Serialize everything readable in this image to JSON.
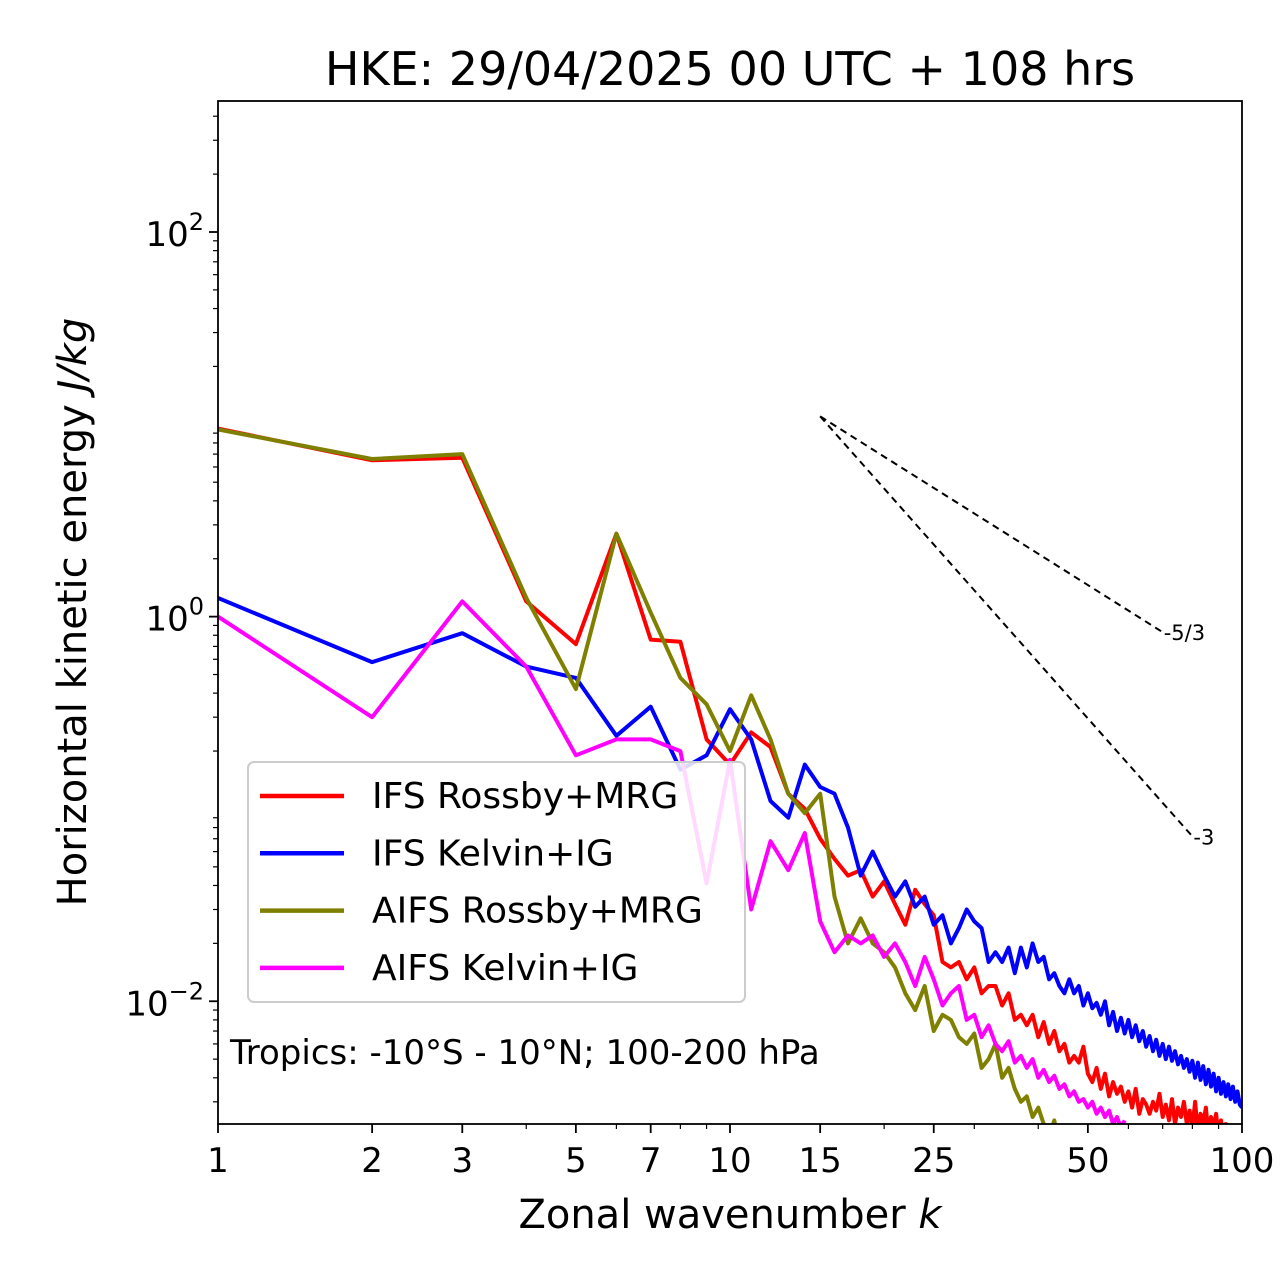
{
  "chart_data": {
    "type": "line",
    "title": "HKE: 29/04/2025 00 UTC + 108 hrs",
    "xlabel_text": "Zonal wavenumber ",
    "xlabel_italic": "k",
    "ylabel_text": "Horizontal kinetic energy ",
    "ylabel_italic": "J/kg",
    "xscale": "log",
    "yscale": "log",
    "xlim": [
      1,
      100
    ],
    "ylim": [
      0.0023,
      480
    ],
    "x_ticks": [
      1,
      2,
      3,
      5,
      7,
      10,
      15,
      25,
      50,
      100
    ],
    "x_tick_labels": [
      "1",
      "2",
      "3",
      "5",
      "7",
      "10",
      "15",
      "25",
      "50",
      "100"
    ],
    "y_ticks": [
      0.01,
      1,
      100
    ],
    "y_tick_labels": [
      {
        "base": "10",
        "exp": "−2"
      },
      {
        "base": "10",
        "exp": "0"
      },
      {
        "base": "10",
        "exp": "2"
      }
    ],
    "legend_position": "lower-left",
    "annotation": "Tropics: -10°S - 10°N; 100-200 hPa",
    "reference_slopes": [
      {
        "label": "-5/3",
        "x": [
          15,
          70
        ],
        "y": [
          11.0,
          0.83
        ]
      },
      {
        "label": "-3",
        "x": [
          15,
          80
        ],
        "y": [
          11.0,
          0.072
        ]
      }
    ],
    "series": [
      {
        "name": "IFS Rossby+MRG",
        "color": "#ff0000",
        "x": [
          1,
          2,
          3,
          4,
          5,
          6,
          7,
          8,
          9,
          10,
          11,
          12,
          13,
          14,
          15,
          16,
          17,
          18,
          19,
          20,
          21,
          22,
          23,
          24,
          25,
          26,
          27,
          28,
          29,
          30,
          31,
          32,
          33,
          34,
          35,
          36,
          37,
          38,
          39,
          40,
          41,
          42,
          43,
          44,
          45,
          46,
          47,
          48,
          49,
          50,
          51,
          52,
          53,
          54,
          55,
          56,
          57,
          58,
          59,
          60,
          61,
          62,
          63,
          64,
          65,
          66,
          67,
          68,
          69,
          70,
          71,
          72,
          73,
          74,
          75,
          76,
          77,
          78,
          79,
          80,
          81,
          82,
          83,
          84,
          85,
          86,
          87,
          88,
          89,
          90,
          91,
          92,
          93,
          94,
          95,
          96,
          97,
          98,
          99,
          100
        ],
        "y": [
          9.5,
          6.5,
          6.7,
          1.2,
          0.72,
          2.7,
          0.76,
          0.74,
          0.23,
          0.17,
          0.25,
          0.21,
          0.12,
          0.1,
          0.07,
          0.055,
          0.045,
          0.048,
          0.035,
          0.042,
          0.032,
          0.025,
          0.038,
          0.032,
          0.028,
          0.016,
          0.015,
          0.016,
          0.013,
          0.015,
          0.011,
          0.012,
          0.012,
          0.0095,
          0.011,
          0.008,
          0.0085,
          0.0075,
          0.0085,
          0.0065,
          0.0078,
          0.006,
          0.007,
          0.0055,
          0.006,
          0.0048,
          0.0052,
          0.0048,
          0.0058,
          0.0042,
          0.0038,
          0.0045,
          0.0035,
          0.0042,
          0.0032,
          0.0038,
          0.0033,
          0.0036,
          0.003,
          0.0034,
          0.0028,
          0.0035,
          0.0026,
          0.0031,
          0.0029,
          0.0026,
          0.003,
          0.0027,
          0.0033,
          0.0025,
          0.0029,
          0.0024,
          0.0031,
          0.0023,
          0.0028,
          0.0025,
          0.003,
          0.0023,
          0.0027,
          0.0022,
          0.003,
          0.0021,
          0.0026,
          0.0023,
          0.0028,
          0.002,
          0.0025,
          0.0022,
          0.0026,
          0.002,
          0.0024,
          0.0019,
          0.0023,
          0.0021,
          0.0022,
          0.002,
          0.0021,
          0.0018,
          0.002,
          0.0019
        ]
      },
      {
        "name": "IFS Kelvin+IG",
        "color": "#0000ff",
        "x": [
          1,
          2,
          3,
          4,
          5,
          6,
          7,
          8,
          9,
          10,
          11,
          12,
          13,
          14,
          15,
          16,
          17,
          18,
          19,
          20,
          21,
          22,
          23,
          24,
          25,
          26,
          27,
          28,
          29,
          30,
          31,
          32,
          33,
          34,
          35,
          36,
          37,
          38,
          39,
          40,
          41,
          42,
          43,
          44,
          45,
          46,
          47,
          48,
          49,
          50,
          51,
          52,
          53,
          54,
          55,
          56,
          57,
          58,
          59,
          60,
          61,
          62,
          63,
          64,
          65,
          66,
          67,
          68,
          69,
          70,
          71,
          72,
          73,
          74,
          75,
          76,
          77,
          78,
          79,
          80,
          81,
          82,
          83,
          84,
          85,
          86,
          87,
          88,
          89,
          90,
          91,
          92,
          93,
          94,
          95,
          96,
          97,
          98,
          99,
          100
        ],
        "y": [
          1.25,
          0.58,
          0.82,
          0.55,
          0.48,
          0.24,
          0.34,
          0.16,
          0.19,
          0.33,
          0.23,
          0.11,
          0.09,
          0.17,
          0.13,
          0.12,
          0.08,
          0.045,
          0.06,
          0.045,
          0.035,
          0.042,
          0.031,
          0.035,
          0.025,
          0.028,
          0.02,
          0.024,
          0.03,
          0.026,
          0.024,
          0.016,
          0.018,
          0.016,
          0.019,
          0.014,
          0.019,
          0.015,
          0.02,
          0.016,
          0.017,
          0.013,
          0.014,
          0.012,
          0.011,
          0.013,
          0.011,
          0.012,
          0.0095,
          0.011,
          0.0092,
          0.0098,
          0.0085,
          0.01,
          0.0075,
          0.0088,
          0.007,
          0.0082,
          0.0068,
          0.008,
          0.0065,
          0.0075,
          0.0062,
          0.007,
          0.0058,
          0.0066,
          0.0055,
          0.0063,
          0.0052,
          0.006,
          0.005,
          0.0058,
          0.0049,
          0.0055,
          0.0047,
          0.0052,
          0.0045,
          0.005,
          0.0043,
          0.0049,
          0.004,
          0.0048,
          0.0039,
          0.0046,
          0.0037,
          0.0044,
          0.0036,
          0.0042,
          0.0034,
          0.004,
          0.0033,
          0.0038,
          0.0032,
          0.0037,
          0.0031,
          0.0036,
          0.003,
          0.0034,
          0.0029,
          0.0028
        ]
      },
      {
        "name": "AIFS Rossby+MRG",
        "color": "#808000",
        "x": [
          1,
          2,
          3,
          4,
          5,
          6,
          7,
          8,
          9,
          10,
          11,
          12,
          13,
          14,
          15,
          16,
          17,
          18,
          19,
          20,
          21,
          22,
          23,
          24,
          25,
          26,
          27,
          28,
          29,
          30,
          31,
          32,
          33,
          34,
          35,
          36,
          37,
          38,
          39,
          40,
          41,
          42,
          43,
          44,
          45,
          46,
          47,
          48,
          49,
          50
        ],
        "y": [
          9.4,
          6.6,
          7.0,
          1.25,
          0.42,
          2.7,
          1.05,
          0.48,
          0.35,
          0.2,
          0.39,
          0.23,
          0.12,
          0.095,
          0.12,
          0.035,
          0.02,
          0.027,
          0.02,
          0.018,
          0.015,
          0.011,
          0.009,
          0.012,
          0.007,
          0.0085,
          0.008,
          0.0065,
          0.006,
          0.0068,
          0.0045,
          0.005,
          0.006,
          0.004,
          0.0045,
          0.0035,
          0.003,
          0.0032,
          0.0025,
          0.0028,
          0.0023,
          0.002,
          0.0024,
          0.0018,
          0.0021,
          0.0016,
          0.0019,
          0.0015,
          0.0017,
          0.0014
        ]
      },
      {
        "name": "AIFS Kelvin+IG",
        "color": "#ff00ff",
        "x": [
          1,
          2,
          3,
          4,
          5,
          6,
          7,
          8,
          9,
          10,
          11,
          12,
          13,
          14,
          15,
          16,
          17,
          18,
          19,
          20,
          21,
          22,
          23,
          24,
          25,
          26,
          27,
          28,
          29,
          30,
          31,
          32,
          33,
          34,
          35,
          36,
          37,
          38,
          39,
          40,
          41,
          42,
          43,
          44,
          45,
          46,
          47,
          48,
          49,
          50,
          51,
          52,
          53,
          54,
          55,
          56,
          57,
          58,
          59
        ],
        "y": [
          1.0,
          0.3,
          1.2,
          0.55,
          0.19,
          0.23,
          0.23,
          0.2,
          0.041,
          0.18,
          0.03,
          0.068,
          0.048,
          0.075,
          0.026,
          0.018,
          0.022,
          0.02,
          0.022,
          0.017,
          0.02,
          0.016,
          0.012,
          0.017,
          0.013,
          0.0095,
          0.011,
          0.012,
          0.008,
          0.0085,
          0.0065,
          0.0075,
          0.006,
          0.0055,
          0.0062,
          0.0048,
          0.0052,
          0.0045,
          0.005,
          0.004,
          0.0044,
          0.0038,
          0.0041,
          0.0035,
          0.0037,
          0.0032,
          0.0034,
          0.003,
          0.0031,
          0.0028,
          0.003,
          0.0026,
          0.0028,
          0.0025,
          0.0027,
          0.0023,
          0.0025,
          0.0022,
          0.0024
        ]
      }
    ]
  }
}
